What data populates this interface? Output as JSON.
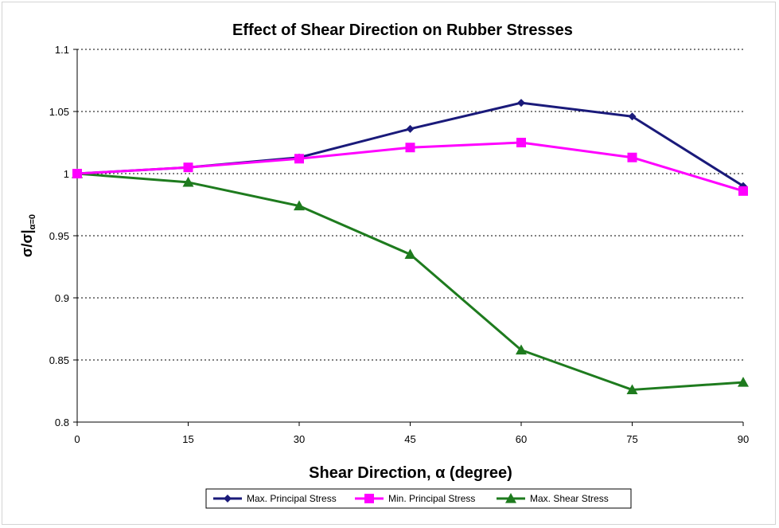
{
  "chart_data": {
    "type": "line",
    "title": "Effect of Shear Direction on Rubber Stresses",
    "xlabel": "Shear Direction, α (degree)",
    "ylabel_main": "σ/σ|",
    "ylabel_sub": "α=0",
    "x": [
      0,
      15,
      30,
      45,
      60,
      75,
      90
    ],
    "xlim": [
      0,
      90
    ],
    "ylim": [
      0.8,
      1.1
    ],
    "x_ticks": [
      "0",
      "15",
      "30",
      "45",
      "60",
      "75",
      "90"
    ],
    "y_ticks": [
      "0.8",
      "0.85",
      "0.9",
      "0.95",
      "1",
      "1.05",
      "1.1"
    ],
    "grid": "horizontal dotted",
    "legend_position": "bottom",
    "series": [
      {
        "name": "Max. Principal Stress",
        "color": "#1a1a7a",
        "marker": "diamond",
        "values": [
          1.0,
          1.005,
          1.013,
          1.036,
          1.057,
          1.046,
          0.99
        ]
      },
      {
        "name": "Min. Principal Stress",
        "color": "#ff00ff",
        "marker": "square",
        "values": [
          1.0,
          1.005,
          1.012,
          1.021,
          1.025,
          1.013,
          0.986
        ]
      },
      {
        "name": "Max. Shear Stress",
        "color": "#1e7b1e",
        "marker": "triangle",
        "values": [
          1.0,
          0.993,
          0.974,
          0.935,
          0.858,
          0.826,
          0.832
        ]
      }
    ]
  }
}
